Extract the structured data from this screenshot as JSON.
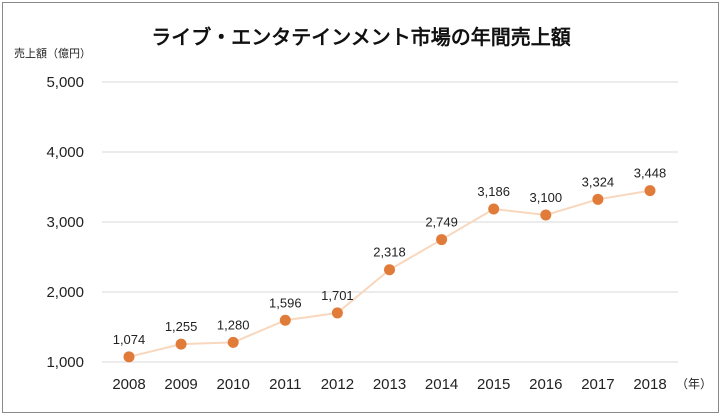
{
  "chart_data": {
    "type": "line",
    "title": "ライブ・エンタテインメント市場の年間売上額",
    "ylabel": "売上額（億円）",
    "xunit": "（年）",
    "ylim": [
      1000,
      5000
    ],
    "yticks": [
      1000,
      2000,
      3000,
      4000,
      5000
    ],
    "ytick_labels": [
      "1,000",
      "2,000",
      "3,000",
      "4,000",
      "5,000"
    ],
    "grid": true,
    "categories": [
      "2008",
      "2009",
      "2010",
      "2011",
      "2012",
      "2013",
      "2014",
      "2015",
      "2016",
      "2017",
      "2018"
    ],
    "series": [
      {
        "values": [
          1074,
          1255,
          1280,
          1596,
          1701,
          2318,
          2749,
          3186,
          3100,
          3324,
          3448
        ],
        "labels": [
          "1,074",
          "1,255",
          "1,280",
          "1,596",
          "1,701",
          "2,318",
          "2,749",
          "3,186",
          "3,100",
          "3,324",
          "3,448"
        ]
      }
    ],
    "colors": {
      "point": "#e07b39",
      "line": "#f8d7bd",
      "grid": "#d9d9d9"
    }
  }
}
